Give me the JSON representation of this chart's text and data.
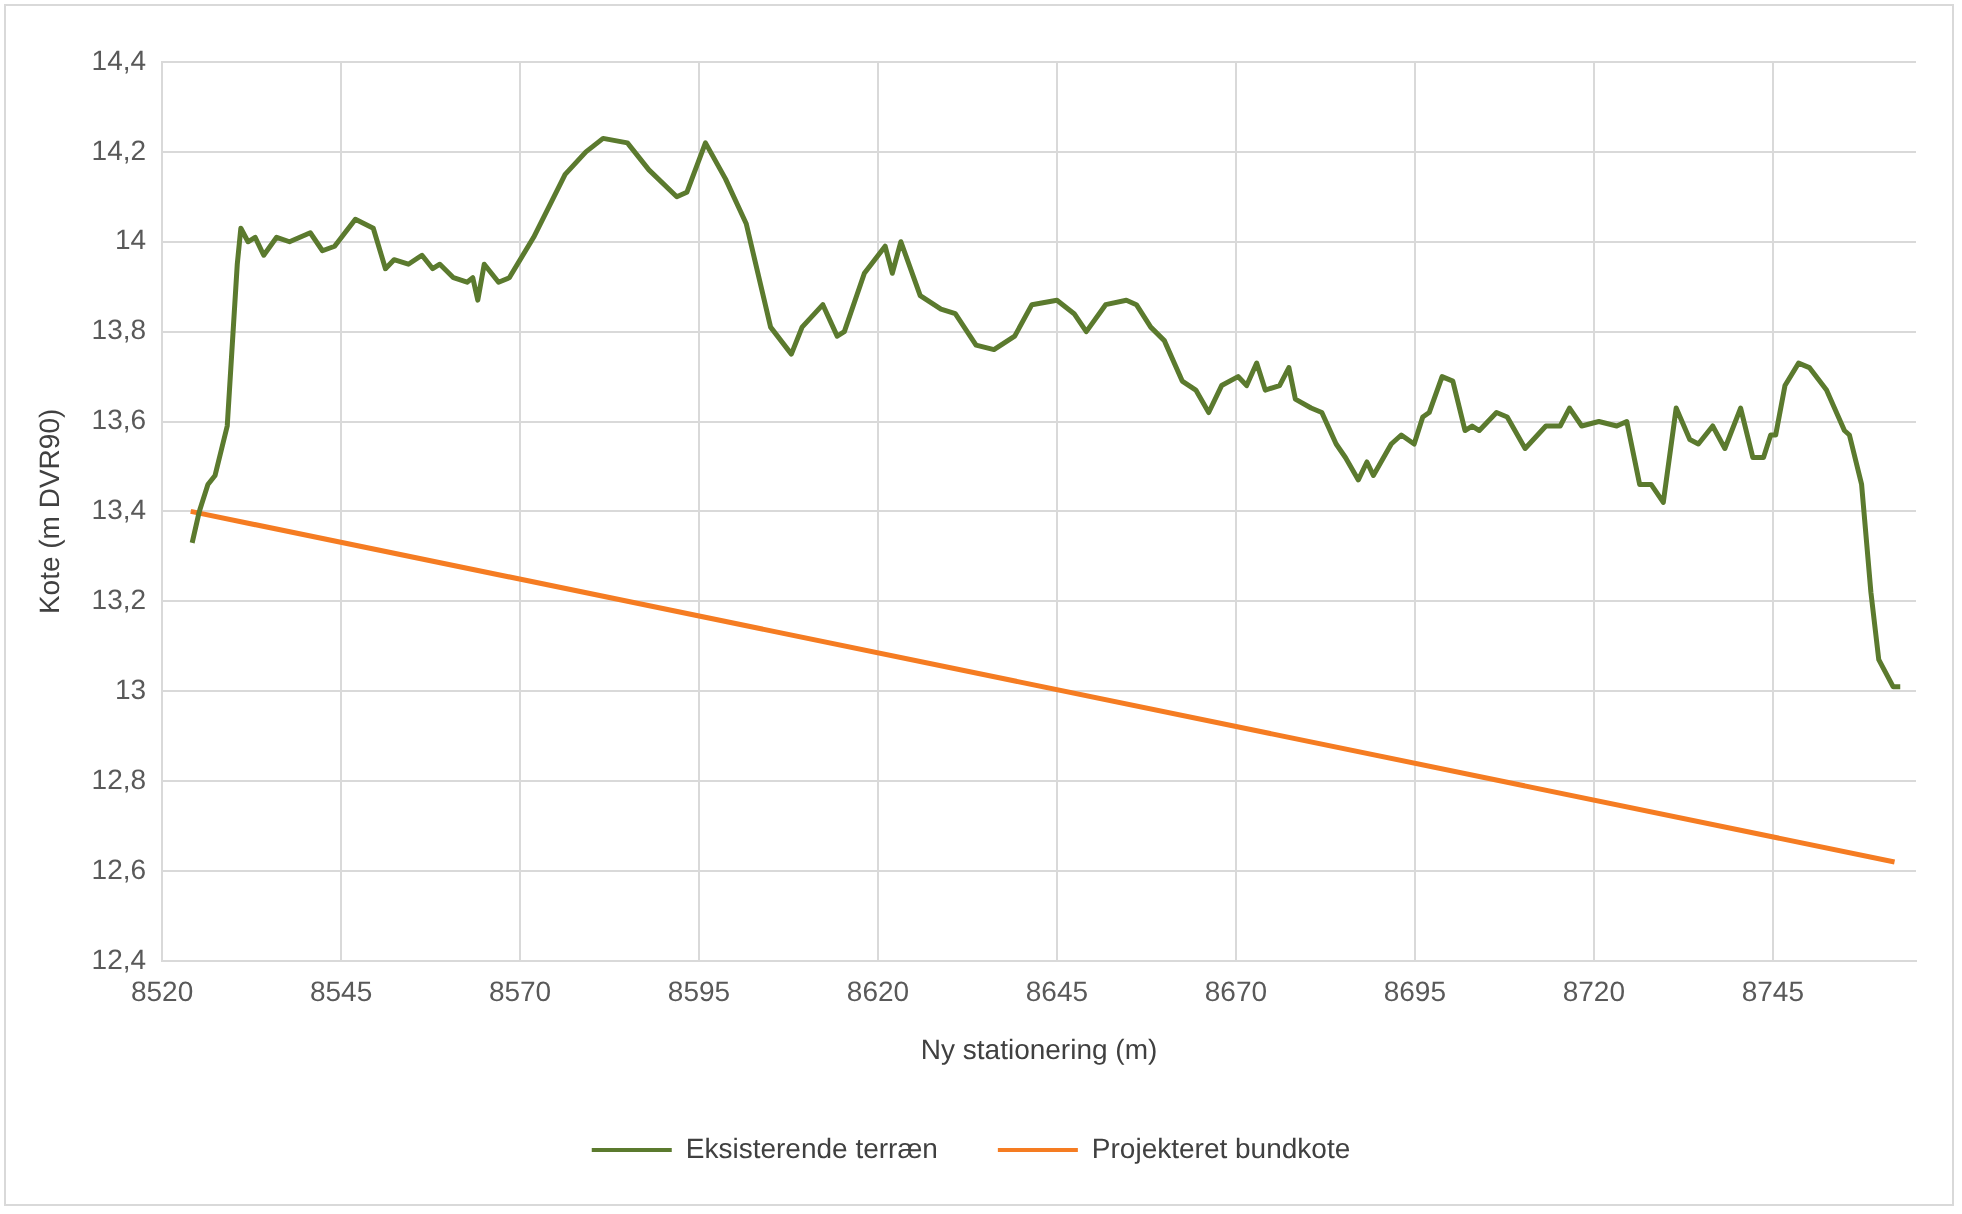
{
  "chart_data": {
    "type": "line",
    "xlabel": "Ny stationering (m)",
    "ylabel": "Kote (m DVR90)",
    "grid": true,
    "legend": "bottom",
    "marker": "none",
    "line_style": "solid",
    "xlim": [
      8520,
      8765
    ],
    "xticks": [
      8520,
      8545,
      8570,
      8595,
      8620,
      8645,
      8670,
      8695,
      8720,
      8745
    ],
    "ylim": [
      12.4,
      14.4
    ],
    "yticks": [
      {
        "value": 12.4,
        "label": "12,4"
      },
      {
        "value": 12.6,
        "label": "12,6"
      },
      {
        "value": 12.8,
        "label": "12,8"
      },
      13,
      {
        "value": 13.2,
        "label": "13,2"
      },
      {
        "value": 13.4,
        "label": "13,4"
      },
      {
        "value": 13.6,
        "label": "13,6"
      },
      {
        "value": 13.8,
        "label": "13,8"
      },
      14,
      {
        "value": 14.2,
        "label": "14,2"
      },
      {
        "value": 14.4,
        "label": "14,4"
      }
    ],
    "series": [
      {
        "name": "Eksisterende terræn",
        "color": "#5b7a2e",
        "x": [
          8524.2,
          8525.2,
          8526.4,
          8527.4,
          8529.1,
          8530.5,
          8531,
          8532,
          8533,
          8534.2,
          8536,
          8537.8,
          8540.7,
          8542.4,
          8544.1,
          8547,
          8549.5,
          8551.2,
          8552.4,
          8554.4,
          8556.3,
          8557.8,
          8558.8,
          8560.7,
          8562.6,
          8563.4,
          8564.1,
          8565,
          8567,
          8568.5,
          8571.9,
          8576.3,
          8579.2,
          8581.6,
          8585,
          8588,
          8591.9,
          8593.3,
          8595.9,
          8598.7,
          8601.6,
          8605,
          8607.9,
          8609.4,
          8612.3,
          8614.3,
          8615.3,
          8618.1,
          8621,
          8622,
          8623.2,
          8625.9,
          8628.8,
          8630.8,
          8633.7,
          8636.2,
          8639.1,
          8641.5,
          8645,
          8647.4,
          8649.1,
          8651.8,
          8654.7,
          8656.1,
          8658.1,
          8660,
          8662.5,
          8664.4,
          8666.2,
          8668,
          8670.3,
          8671.5,
          8672.9,
          8674.1,
          8676.1,
          8677.4,
          8678.3,
          8680.5,
          8682,
          8684,
          8685.3,
          8687.1,
          8688.3,
          8689.2,
          8691.7,
          8693.1,
          8694.9,
          8696.1,
          8697,
          8698.8,
          8700.3,
          8702,
          8703,
          8704,
          8706.4,
          8707.9,
          8710.4,
          8713.3,
          8715.3,
          8716.6,
          8718.3,
          8720.7,
          8723.2,
          8724.6,
          8726.4,
          8728,
          8729.7,
          8731.5,
          8733.4,
          8734.6,
          8736.6,
          8738.3,
          8740.5,
          8742.2,
          8743.7,
          8744.7,
          8745.4,
          8746.7,
          8748.6,
          8750.1,
          8752.5,
          8755,
          8755.7,
          8757.4,
          8758.7,
          8759.8,
          8761.8,
          8762.8
        ],
        "values": [
          13.33,
          13.4,
          13.46,
          13.48,
          13.59,
          13.95,
          14.03,
          14.0,
          14.01,
          13.97,
          14.01,
          14.0,
          14.02,
          13.98,
          13.99,
          14.05,
          14.03,
          13.94,
          13.96,
          13.95,
          13.97,
          13.94,
          13.95,
          13.92,
          13.91,
          13.92,
          13.87,
          13.95,
          13.91,
          13.92,
          14.01,
          14.15,
          14.2,
          14.23,
          14.22,
          14.16,
          14.1,
          14.11,
          14.22,
          14.14,
          14.04,
          13.81,
          13.75,
          13.81,
          13.86,
          13.79,
          13.8,
          13.93,
          13.99,
          13.93,
          14.0,
          13.88,
          13.85,
          13.84,
          13.77,
          13.76,
          13.79,
          13.86,
          13.87,
          13.84,
          13.8,
          13.86,
          13.87,
          13.86,
          13.81,
          13.78,
          13.69,
          13.67,
          13.62,
          13.68,
          13.7,
          13.68,
          13.73,
          13.67,
          13.68,
          13.72,
          13.65,
          13.63,
          13.62,
          13.55,
          13.52,
          13.47,
          13.51,
          13.48,
          13.55,
          13.57,
          13.55,
          13.61,
          13.62,
          13.7,
          13.69,
          13.58,
          13.59,
          13.58,
          13.62,
          13.61,
          13.54,
          13.59,
          13.59,
          13.63,
          13.59,
          13.6,
          13.59,
          13.6,
          13.46,
          13.46,
          13.42,
          13.63,
          13.56,
          13.55,
          13.59,
          13.54,
          13.63,
          13.52,
          13.52,
          13.57,
          13.57,
          13.68,
          13.73,
          13.72,
          13.67,
          13.58,
          13.57,
          13.46,
          13.22,
          13.07,
          13.01,
          13.01
        ]
      },
      {
        "name": "Projekteret bundkote",
        "color": "#f57c22",
        "x": [
          8524,
          8762
        ],
        "values": [
          13.4,
          12.62
        ]
      }
    ]
  }
}
